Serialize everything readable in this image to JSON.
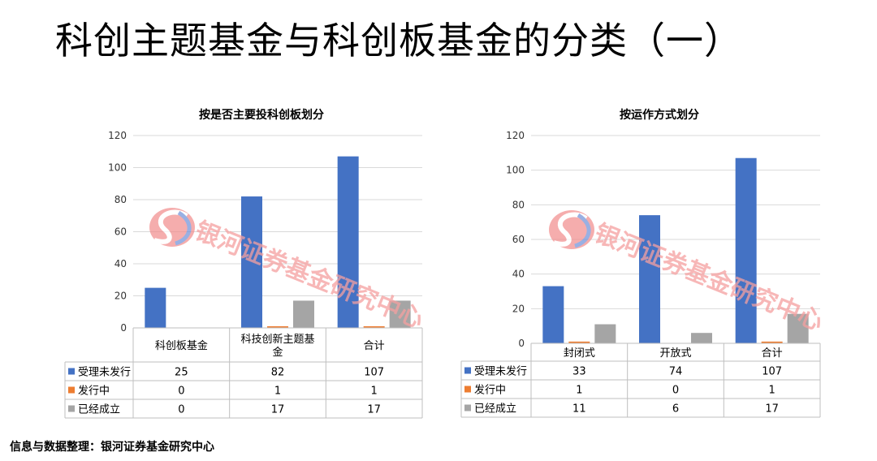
{
  "page": {
    "title": "科创主题基金与科创板基金的分类（一）",
    "footer": "信息与数据整理：银河证券基金研究中心",
    "watermark_text": "银河证券基金研究中心",
    "watermark_icon": "galaxy-logo-icon"
  },
  "chart_data": [
    {
      "type": "bar",
      "title": "按是否主要投科创板划分",
      "categories": [
        [
          "科创板基金"
        ],
        [
          "科技创新主题基",
          "金"
        ],
        [
          "合计"
        ]
      ],
      "ylim": [
        0,
        120
      ],
      "yticks": [
        0,
        20,
        40,
        60,
        80,
        100,
        120
      ],
      "grid": true,
      "legend": "table-left",
      "series": [
        {
          "name": "受理未发行",
          "color": "#4472c4",
          "values": [
            25,
            82,
            107
          ]
        },
        {
          "name": "发行中",
          "color": "#ed7d31",
          "values": [
            0,
            1,
            1
          ]
        },
        {
          "name": "已经成立",
          "color": "#a5a5a5",
          "values": [
            0,
            17,
            17
          ]
        }
      ]
    },
    {
      "type": "bar",
      "title": "按运作方式划分",
      "categories": [
        [
          "封闭式"
        ],
        [
          "开放式"
        ],
        [
          "合计"
        ]
      ],
      "ylim": [
        0,
        120
      ],
      "yticks": [
        0,
        20,
        40,
        60,
        80,
        100,
        120
      ],
      "grid": true,
      "legend": "table-left",
      "series": [
        {
          "name": "受理未发行",
          "color": "#4472c4",
          "values": [
            33,
            74,
            107
          ]
        },
        {
          "name": "发行中",
          "color": "#ed7d31",
          "values": [
            1,
            0,
            1
          ]
        },
        {
          "name": "已经成立",
          "color": "#a5a5a5",
          "values": [
            11,
            6,
            17
          ]
        }
      ]
    }
  ]
}
